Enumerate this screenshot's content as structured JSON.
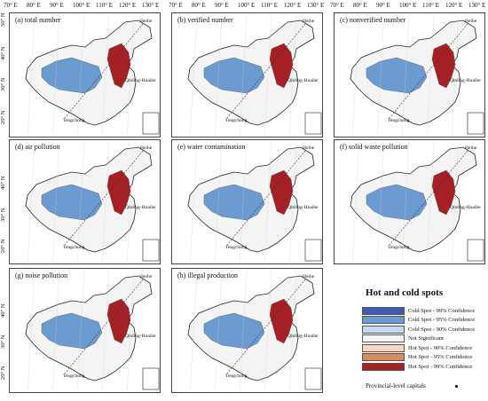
{
  "top_axis": {
    "groups": [
      [
        "70° E",
        "80° E",
        "90° E",
        "100° E",
        "110° E",
        "120° E",
        "130° E"
      ],
      [
        "70° E",
        "80° E",
        "90° E",
        "100° E",
        "110° E",
        "120° E",
        "130° E"
      ],
      [
        "70° E",
        "80° E",
        "90° E",
        "100° E",
        "110° E",
        "120° E",
        "130° E"
      ]
    ]
  },
  "left_axis": {
    "row1": [
      "50° N",
      "40° N",
      "30° N",
      "20° N"
    ],
    "row2": [
      "40° N",
      "30° N",
      "20° N"
    ],
    "row3": [
      "40° N",
      "30° N",
      "20° N"
    ]
  },
  "place_labels": {
    "heihe": "Heihe",
    "qinling": "Qinling-Huaihe",
    "tengchong": "Tengchong"
  },
  "panels": [
    {
      "title": "(a) total number"
    },
    {
      "title": "(b) verified number"
    },
    {
      "title": "(c) nonverified number"
    },
    {
      "title": "(d) air pollution"
    },
    {
      "title": "(e) water contamination"
    },
    {
      "title": "(f) solid waste pollution"
    },
    {
      "title": "(g) noise pollution"
    },
    {
      "title": "(h) illegal production"
    }
  ],
  "legend": {
    "title": "Hot and cold spots",
    "items": [
      {
        "label": "Cold Spot - 99% Confidence",
        "color": "#3b5bb5"
      },
      {
        "label": "Cold Spot - 95% Confidence",
        "color": "#6b9bd1"
      },
      {
        "label": "Cold Spot - 90% Confidence",
        "color": "#c6d9ee"
      },
      {
        "label": "Not Significant",
        "color": "#f4f4f4"
      },
      {
        "label": "Hot Spot - 90% Confidence",
        "color": "#f5d6c0"
      },
      {
        "label": "Hot Spot - 95% Confidence",
        "color": "#d98a5a"
      },
      {
        "label": "Hot Spot - 99% Confidence",
        "color": "#a52025"
      }
    ],
    "capitals_label": "Provincial-level capitals"
  }
}
